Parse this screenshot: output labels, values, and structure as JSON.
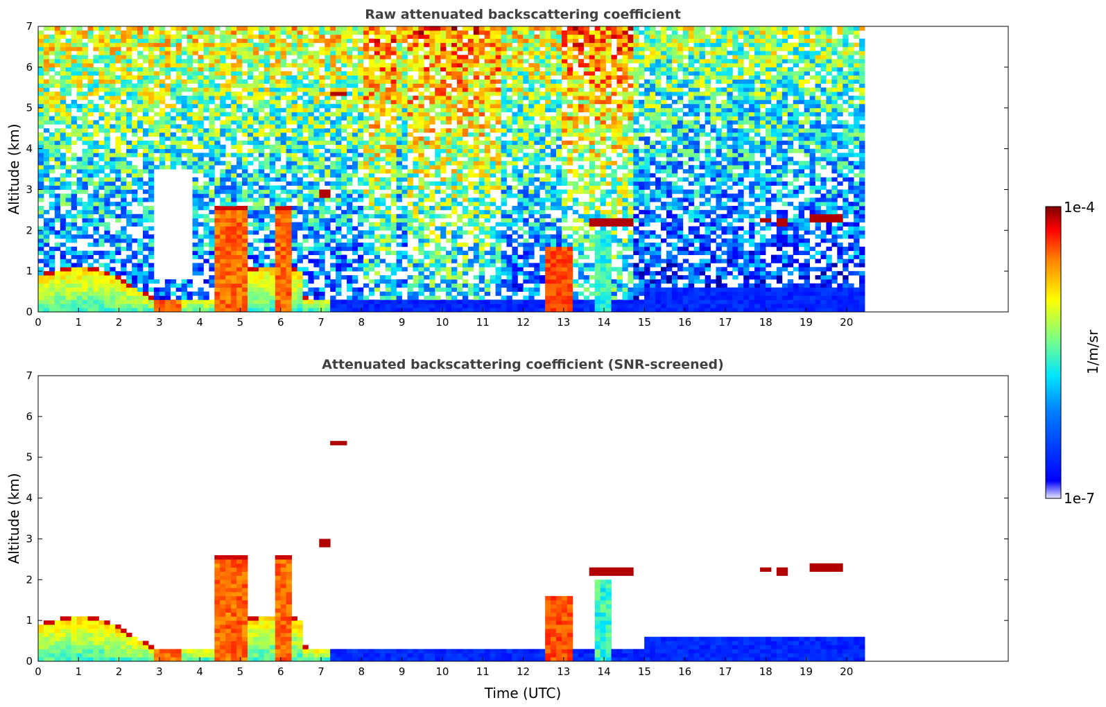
{
  "chart_data": [
    {
      "type": "heatmap",
      "title": "Raw attenuated backscattering coefficient",
      "xlabel": "",
      "ylabel": "Altitude (km)",
      "xlim": [
        0,
        24
      ],
      "ylim": [
        0,
        7
      ],
      "xticks": [
        "0",
        "1",
        "2",
        "3",
        "4",
        "5",
        "6",
        "7",
        "8",
        "9",
        "10",
        "11",
        "12",
        "13",
        "14",
        "15",
        "16",
        "17",
        "18",
        "19",
        "20"
      ],
      "yticks": [
        "0",
        "1",
        "2",
        "3",
        "4",
        "5",
        "6",
        "7"
      ],
      "data_end_time": 20.45,
      "screened": false
    },
    {
      "type": "heatmap",
      "title": "Attenuated backscattering coefficient (SNR-screened)",
      "xlabel": "Time (UTC)",
      "ylabel": "Altitude (km)",
      "xlim": [
        0,
        24
      ],
      "ylim": [
        0,
        7
      ],
      "xticks": [
        "0",
        "1",
        "2",
        "3",
        "4",
        "5",
        "6",
        "7",
        "8",
        "9",
        "10",
        "11",
        "12",
        "13",
        "14",
        "15",
        "16",
        "17",
        "18",
        "19",
        "20"
      ],
      "yticks": [
        "0",
        "1",
        "2",
        "3",
        "4",
        "5",
        "6",
        "7"
      ],
      "data_end_time": 20.45,
      "screened": true
    }
  ],
  "colorbar": {
    "max_label": "1e-4",
    "min_label": "1e-7",
    "units_label": "1/m/sr",
    "colormap": [
      "#000080",
      "#0000ff",
      "#0080ff",
      "#00ffff",
      "#80ff80",
      "#ffff00",
      "#ff8000",
      "#ff0000",
      "#800000"
    ]
  },
  "features": {
    "cloud_layers": [
      {
        "t0": 17.8,
        "t1": 18.2,
        "alt": 2.25
      },
      {
        "t0": 18.3,
        "t1": 18.6,
        "alt": 2.2
      },
      {
        "t0": 19.1,
        "t1": 19.9,
        "alt": 2.3
      },
      {
        "t0": 13.7,
        "t1": 14.7,
        "alt": 2.2
      },
      {
        "t0": 7.25,
        "t1": 7.7,
        "alt": 5.35
      },
      {
        "t0": 7.0,
        "t1": 7.2,
        "alt": 2.9
      }
    ]
  }
}
